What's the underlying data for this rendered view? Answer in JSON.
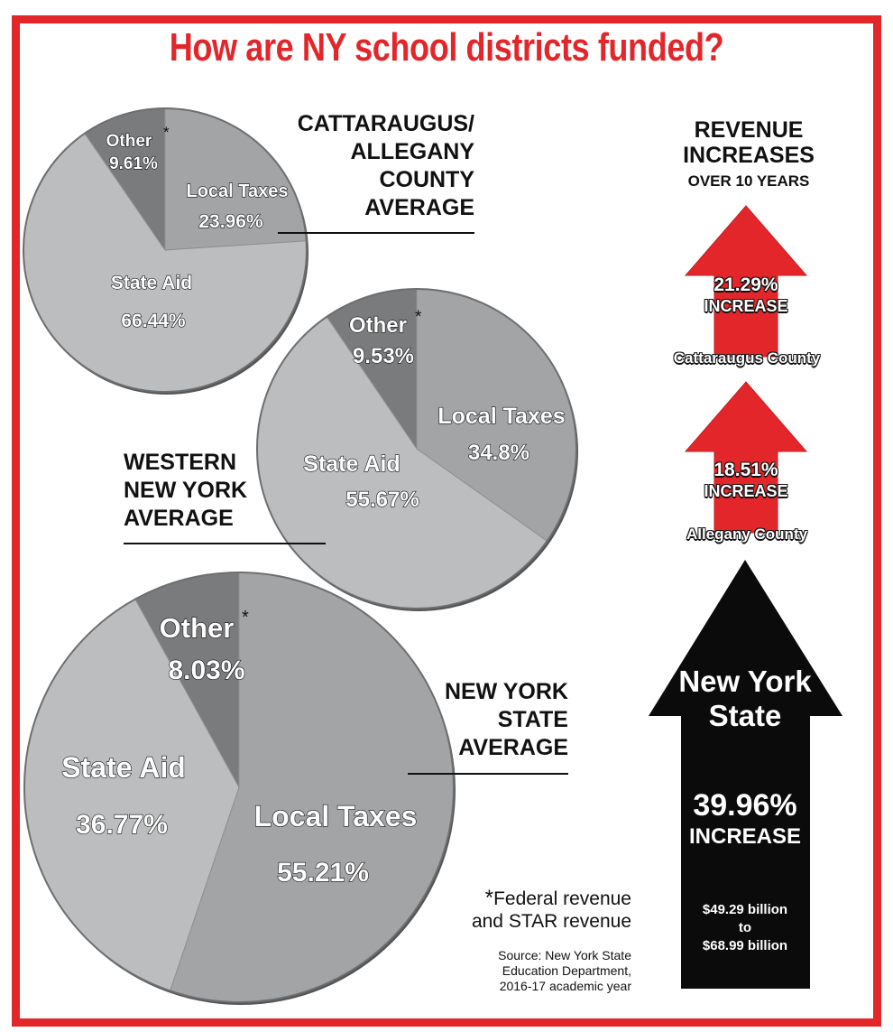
{
  "title": "How are NY school districts funded?",
  "colors": {
    "accent_red": "#e3262a",
    "arrow_black": "#0b0b0b",
    "state_aid": "#bcbdbf",
    "local_taxes": "#a3a4a6",
    "other": "#7a7b7d"
  },
  "chart_data": [
    {
      "type": "pie",
      "title": "CATTARAUGUS/ ALLEGANY COUNTY AVERAGE",
      "title_lines": [
        "CATTARAUGUS/",
        "ALLEGANY",
        "COUNTY",
        "AVERAGE"
      ],
      "slices": [
        {
          "label": "Local Taxes",
          "value_label": "23.96%",
          "value": 23.96
        },
        {
          "label": "State Aid",
          "value_label": "66.44%",
          "value": 66.44
        },
        {
          "label": "Other",
          "value_label": "9.61%",
          "value": 9.61
        }
      ],
      "asterisk": "*"
    },
    {
      "type": "pie",
      "title": "WESTERN NEW YORK AVERAGE",
      "title_lines": [
        "WESTERN",
        "NEW YORK",
        "AVERAGE"
      ],
      "slices": [
        {
          "label": "Local Taxes",
          "value_label": "34.8%",
          "value": 34.8
        },
        {
          "label": "State Aid",
          "value_label": "55.67%",
          "value": 55.67
        },
        {
          "label": "Other",
          "value_label": "9.53%",
          "value": 9.53
        }
      ],
      "asterisk": "*"
    },
    {
      "type": "pie",
      "title": "NEW YORK STATE AVERAGE",
      "title_lines": [
        "NEW YORK",
        "STATE",
        "AVERAGE"
      ],
      "slices": [
        {
          "label": "Local Taxes",
          "value_label": "55.21%",
          "value": 55.21
        },
        {
          "label": "State Aid",
          "value_label": "36.77%",
          "value": 36.77
        },
        {
          "label": "Other",
          "value_label": "8.03%",
          "value": 8.03
        }
      ],
      "asterisk": "*"
    },
    {
      "type": "bar",
      "title": "REVENUE INCREASES OVER 10 YEARS",
      "title_line1": "REVENUE",
      "title_line2": "INCREASES",
      "title_line3": "OVER 10 YEARS",
      "categories": [
        "Cattaraugus County",
        "Allegany County",
        "New York State"
      ],
      "values": [
        21.29,
        18.51,
        39.96
      ],
      "value_labels": [
        "21.29%",
        "18.51%",
        "39.96%"
      ],
      "increase_word": "INCREASE",
      "ny_range_from": "$49.29 billion",
      "ny_range_to_word": "to",
      "ny_range_to": "$68.99 billion"
    }
  ],
  "footnote": {
    "asterisk": "*",
    "line1": "Federal revenue",
    "line2": "and STAR revenue"
  },
  "source": {
    "line1": "Source: New York State",
    "line2": "Education Department,",
    "line3": "2016-17 academic year"
  }
}
